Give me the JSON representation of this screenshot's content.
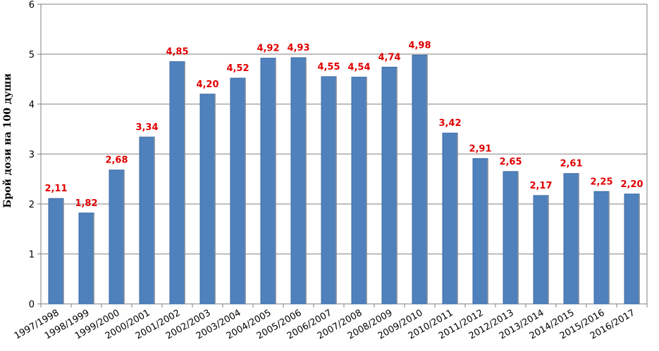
{
  "chart_data": {
    "type": "bar",
    "title": "",
    "xlabel": "",
    "ylabel": "Брой дози на 100 души",
    "ylim": [
      0,
      6
    ],
    "yticks": [
      "0",
      "1",
      "2",
      "3",
      "4",
      "5",
      "6"
    ],
    "grid": true,
    "categories": [
      "1997/1998",
      "1998/1999",
      "1999/2000",
      "2000/2001",
      "2001/2002",
      "2002/2003",
      "2003/2004",
      "2004/2005",
      "2005/2006",
      "2006/2007",
      "2007/2008",
      "2008/2009",
      "2009/2010",
      "2010/2011",
      "2011/2012",
      "2012/2013",
      "2013/2014",
      "2014/2015",
      "2015/2016",
      "2016/2017"
    ],
    "values": [
      2.11,
      1.82,
      2.68,
      3.34,
      4.85,
      4.2,
      4.52,
      4.92,
      4.93,
      4.55,
      4.54,
      4.74,
      4.98,
      3.42,
      2.91,
      2.65,
      2.17,
      2.61,
      2.25,
      2.2
    ],
    "data_labels": [
      "2,11",
      "1,82",
      "2,68",
      "3,34",
      "4,85",
      "4,20",
      "4,52",
      "4,92",
      "4,93",
      "4,55",
      "4,54",
      "4,74",
      "4,98",
      "3,42",
      "2,91",
      "2,65",
      "2,17",
      "2,61",
      "2,25",
      "2,20"
    ],
    "colors": {
      "bar": "#4F81BD",
      "bar_edge": "#3A6AA6",
      "label": "#E00000",
      "grid": "#7F7F7F",
      "axis": "#7F7F7F"
    }
  }
}
